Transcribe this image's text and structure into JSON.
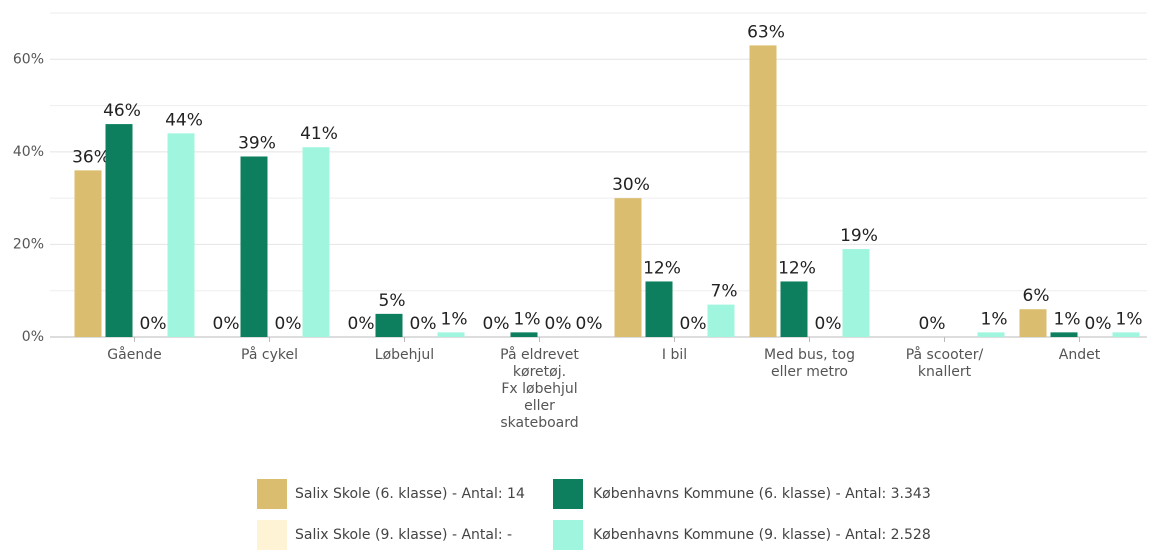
{
  "chart_data": {
    "type": "bar",
    "categories": [
      "Gående",
      "På cykel",
      "Løbehjul",
      [
        "På eldrevet",
        "køretøj.",
        "Fx løbehjul",
        "eller",
        "skateboard"
      ],
      "I bil",
      [
        "Med bus, tog",
        "eller metro"
      ],
      [
        "På scooter/",
        "knallert"
      ],
      "Andet"
    ],
    "series": [
      {
        "name": "Salix Skole (6. klasse) - Antal: 14",
        "color": "#dbbd70",
        "values": [
          36,
          0,
          0,
          0,
          30,
          63,
          null,
          6
        ],
        "value_labels": [
          "36%",
          "0%",
          "0%",
          "0%",
          "30%",
          "63%",
          null,
          "6%"
        ]
      },
      {
        "name": "Københavns Kommune (6. klasse) - Antal: 3.343",
        "color": "#0d7f5e",
        "values": [
          46,
          39,
          5,
          1,
          12,
          12,
          0,
          1
        ],
        "value_labels": [
          "46%",
          "39%",
          "5%",
          "1%",
          "12%",
          "12%",
          "0%",
          "1%"
        ]
      },
      {
        "name": "Salix Skole (9. klasse) - Antal: -",
        "color": "#fff3d6",
        "values": [
          0,
          0,
          0,
          0,
          0,
          0,
          null,
          0
        ],
        "value_labels": [
          "0%",
          "0%",
          "0%",
          "0%",
          "0%",
          "0%",
          null,
          "0%"
        ]
      },
      {
        "name": "Københavns Kommune (9. klasse) - Antal: 2.528",
        "color": "#a0f5de",
        "values": [
          44,
          41,
          1,
          0,
          7,
          19,
          1,
          1
        ],
        "value_labels": [
          "44%",
          "41%",
          "1%",
          "0%",
          "7%",
          "19%",
          "1%",
          "1%"
        ]
      }
    ],
    "ylim": [
      0,
      70
    ],
    "yticks": [
      {
        "value": 0,
        "label": "0%"
      },
      {
        "value": 20,
        "label": "20%"
      },
      {
        "value": 40,
        "label": "40%"
      },
      {
        "value": 60,
        "label": "60%"
      }
    ],
    "minor_yticks": [
      10,
      30,
      50,
      70
    ],
    "grid": true
  }
}
